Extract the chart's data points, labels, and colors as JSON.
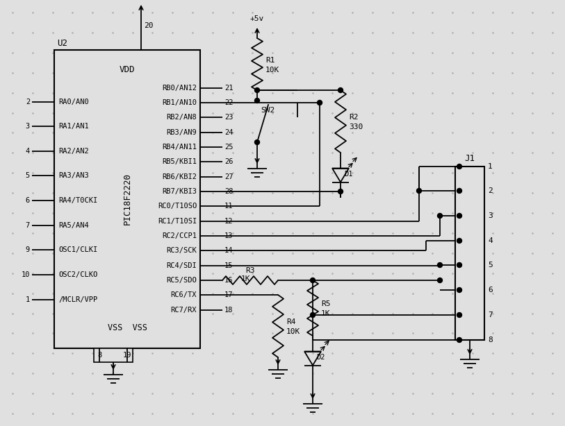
{
  "bg_color": "#e0e0e0",
  "line_color": "#000000",
  "fig_w": 8.13,
  "fig_h": 6.14,
  "dpi": 100,
  "chip_label": "PIC18F2220",
  "chip_ref": "U2",
  "left_pins": [
    {
      "num": "2",
      "label": "RA0/AN0"
    },
    {
      "num": "3",
      "label": "RA1/AN1"
    },
    {
      "num": "4",
      "label": "RA2/AN2"
    },
    {
      "num": "5",
      "label": "RA3/AN3"
    },
    {
      "num": "6",
      "label": "RA4/T0CKI"
    },
    {
      "num": "7",
      "label": "RA5/AN4"
    },
    {
      "num": "9",
      "label": "OSC1/CLKI"
    },
    {
      "num": "10",
      "label": "OSC2/CLKO"
    },
    {
      "num": "1",
      "label": "/MCLR/VPP"
    }
  ],
  "right_pins": [
    {
      "num": "21",
      "label": "RB0/AN12"
    },
    {
      "num": "22",
      "label": "RB1/AN10"
    },
    {
      "num": "23",
      "label": "RB2/AN8"
    },
    {
      "num": "24",
      "label": "RB3/AN9"
    },
    {
      "num": "25",
      "label": "RB4/AN11"
    },
    {
      "num": "26",
      "label": "RB5/KBI1"
    },
    {
      "num": "27",
      "label": "RB6/KBI2"
    },
    {
      "num": "28",
      "label": "RB7/KBI3"
    },
    {
      "num": "11",
      "label": "RC0/T10SO"
    },
    {
      "num": "12",
      "label": "RC1/T10SI"
    },
    {
      "num": "13",
      "label": "RC2/CCP1"
    },
    {
      "num": "14",
      "label": "RC3/SCK"
    },
    {
      "num": "15",
      "label": "RC4/SDI"
    },
    {
      "num": "16",
      "label": "RC5/SDO"
    },
    {
      "num": "17",
      "label": "RC6/TX"
    },
    {
      "num": "18",
      "label": "RC7/RX"
    }
  ]
}
